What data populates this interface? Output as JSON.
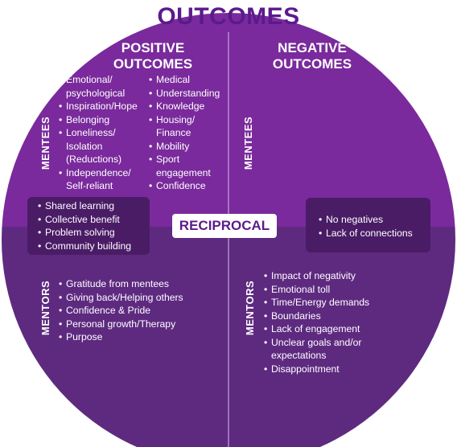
{
  "title": "OUTCOMES",
  "columns": {
    "positive": "POSITIVE\nOUTCOMES",
    "negative": "NEGATIVE\nOUTCOMES"
  },
  "row_labels": {
    "mentees": "MENTEES",
    "mentors": "MENTORS"
  },
  "center_label": "RECIPROCAL",
  "mentees_positive_left": [
    "Emotional/\npsychological",
    "Inspiration/Hope",
    "Belonging",
    "Loneliness/\nIsolation\n(Reductions)",
    "Independence/\nSelf-reliant"
  ],
  "mentees_positive_right": [
    "Medical",
    "Understanding",
    "Knowledge",
    "Housing/\nFinance",
    "Mobility",
    "Sport\nengagement",
    "Confidence"
  ],
  "reciprocal_positive": [
    "Shared learning",
    "Collective benefit",
    "Problem solving",
    "Community building"
  ],
  "reciprocal_negative": [
    "No negatives",
    "Lack of connections"
  ],
  "mentors_positive": [
    "Gratitude from mentees",
    "Giving back/Helping others",
    "Confidence & Pride",
    "Personal growth/Therapy",
    "Purpose"
  ],
  "mentors_negative": [
    "Impact of negativity",
    "Emotional toll",
    "Time/Energy demands",
    "Boundaries",
    "Lack of engagement",
    "Unclear goals and/or\nexpectations",
    "Disappointment"
  ],
  "colors": {
    "circle_top": "#7a2a9c",
    "circle_bottom": "#5e2a80",
    "box": "#4a1c66",
    "title": "#5b1a8c"
  }
}
